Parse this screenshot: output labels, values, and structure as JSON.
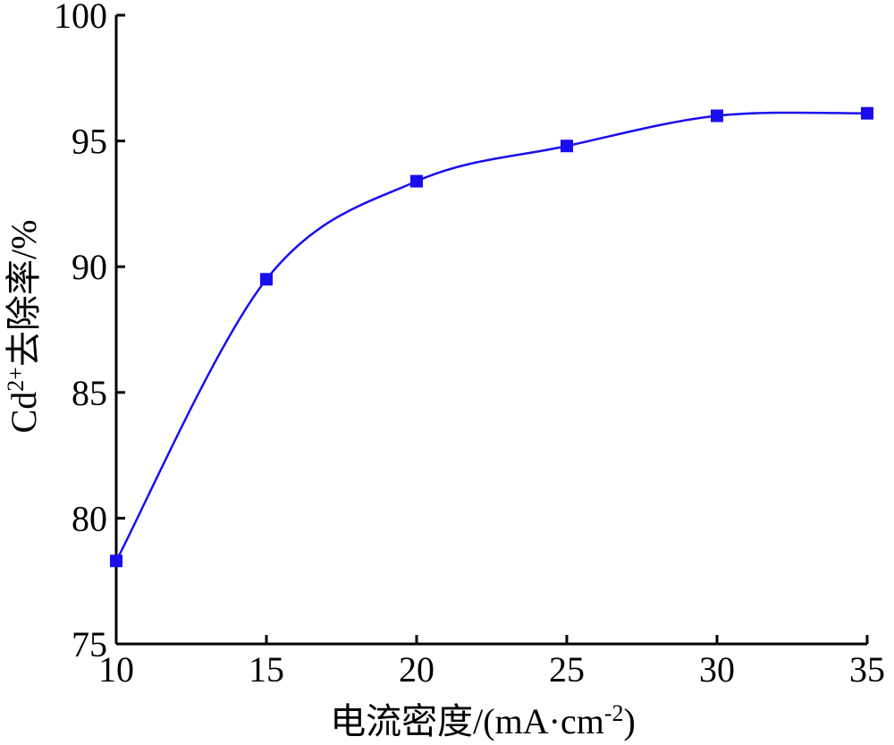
{
  "chart_data": {
    "type": "line",
    "xlabel": "电流密度/(mA·cm",
    "xlabel_sup": "-2",
    "xlabel_end": ")",
    "ylabel": "Cd",
    "ylabel_sup": "2+",
    "ylabel_end": "去除率/%",
    "xlim": [
      10,
      35
    ],
    "ylim": [
      75,
      100
    ],
    "x_ticks": [
      10,
      15,
      20,
      25,
      30,
      35
    ],
    "y_ticks": [
      75,
      80,
      85,
      90,
      95,
      100
    ],
    "grid": false,
    "series": [
      {
        "color": "#1a0df0",
        "marker": "square",
        "x": [
          10,
          15,
          20,
          25,
          30,
          35
        ],
        "y": [
          78.3,
          89.5,
          93.4,
          94.8,
          96.0,
          96.1
        ]
      }
    ]
  }
}
